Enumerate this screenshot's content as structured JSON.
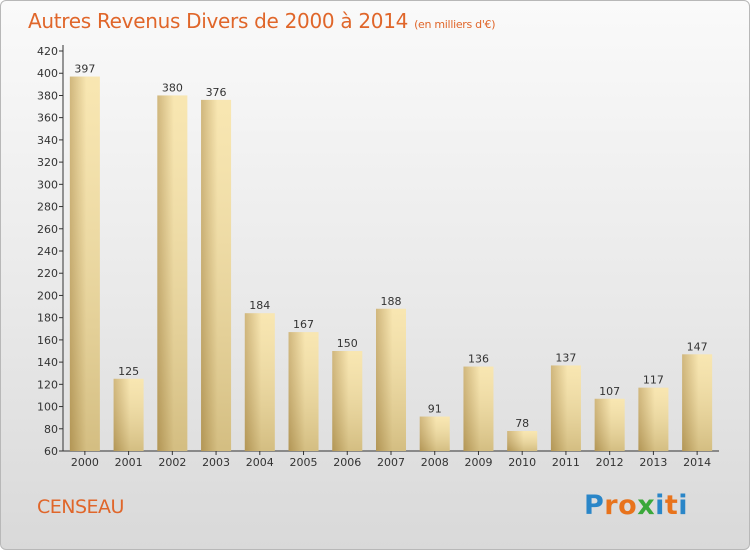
{
  "title": "Autres Revenus Divers de 2000 à 2014",
  "unit_note": "(en milliers d'€)",
  "location": "CENSEAU",
  "logo": {
    "letters": [
      "P",
      "r",
      "o",
      "x",
      "i",
      "t",
      "i"
    ],
    "colors": [
      "#2a86c8",
      "#e8731c",
      "#e8731c",
      "#3aa83a",
      "#2a86c8",
      "#e8731c",
      "#2a86c8"
    ]
  },
  "colors": {
    "bar_light": "#f7e2a4",
    "bar_dark": "#c8aa66",
    "accent": "#e0662a"
  },
  "chart_data": {
    "type": "bar",
    "title": "Autres Revenus Divers de 2000 à 2014",
    "subtitle": "(en milliers d'€)",
    "categories": [
      "2000",
      "2001",
      "2002",
      "2003",
      "2004",
      "2005",
      "2006",
      "2007",
      "2008",
      "2009",
      "2010",
      "2011",
      "2012",
      "2013",
      "2014"
    ],
    "values": [
      397,
      125,
      380,
      376,
      184,
      167,
      150,
      188,
      91,
      136,
      78,
      137,
      107,
      117,
      147
    ],
    "ylim": [
      60,
      420
    ],
    "ytick_step": 20,
    "grid": false,
    "legend": "none"
  }
}
